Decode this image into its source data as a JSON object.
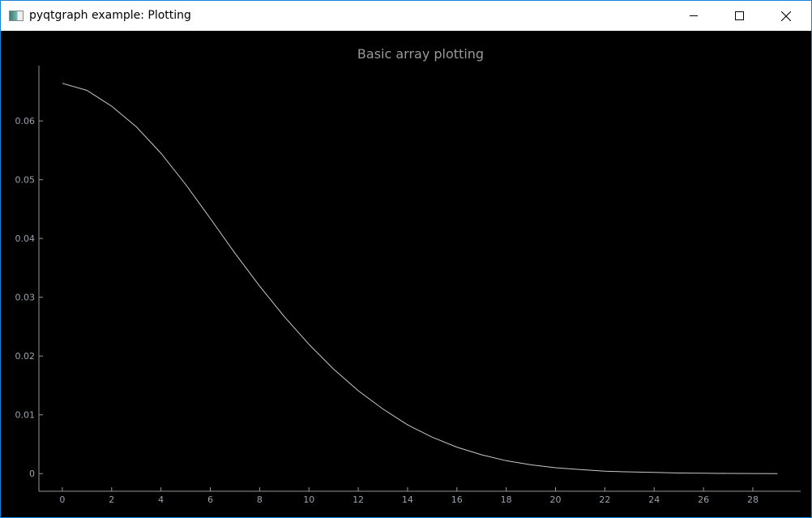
{
  "window": {
    "title": "pyqtgraph example: Plotting",
    "minimize_icon": "minimize-icon",
    "maximize_icon": "maximize-icon",
    "close_icon": "close-icon"
  },
  "chart_data": {
    "type": "line",
    "title": "Basic array plotting",
    "xlabel": "",
    "ylabel": "",
    "xlim": [
      -0.95,
      29.94
    ],
    "ylim": [
      -0.003,
      0.0694
    ],
    "grid": false,
    "x_ticks": [
      0,
      2,
      4,
      6,
      8,
      10,
      12,
      14,
      16,
      18,
      20,
      22,
      24,
      26,
      28
    ],
    "x_tick_labels": [
      "0",
      "2",
      "4",
      "6",
      "8",
      "10",
      "12",
      "14",
      "16",
      "18",
      "20",
      "22",
      "24",
      "26",
      "28"
    ],
    "y_ticks": [
      0,
      0.01,
      0.02,
      0.03,
      0.04,
      0.05,
      0.06
    ],
    "y_tick_labels": [
      "0",
      "0.01",
      "0.02",
      "0.03",
      "0.04",
      "0.05",
      "0.06"
    ],
    "line_color": "#c8c8c8",
    "x": [
      0,
      1,
      2,
      3,
      4,
      5,
      6,
      7,
      8,
      9,
      10,
      11,
      12,
      13,
      14,
      15,
      16,
      17,
      18,
      19,
      20,
      21,
      22,
      23,
      24,
      25,
      26,
      27,
      28,
      29
    ],
    "y": [
      0.0664,
      0.0652,
      0.0625,
      0.059,
      0.0545,
      0.0492,
      0.0434,
      0.0375,
      0.0319,
      0.0267,
      0.022,
      0.0178,
      0.0141,
      0.011,
      0.0083,
      0.0062,
      0.0045,
      0.0032,
      0.0022,
      0.0015,
      0.001,
      0.0007,
      0.0004,
      0.0003,
      0.0002,
      0.0001,
      6e-05,
      3e-05,
      2e-05,
      1e-05
    ]
  }
}
